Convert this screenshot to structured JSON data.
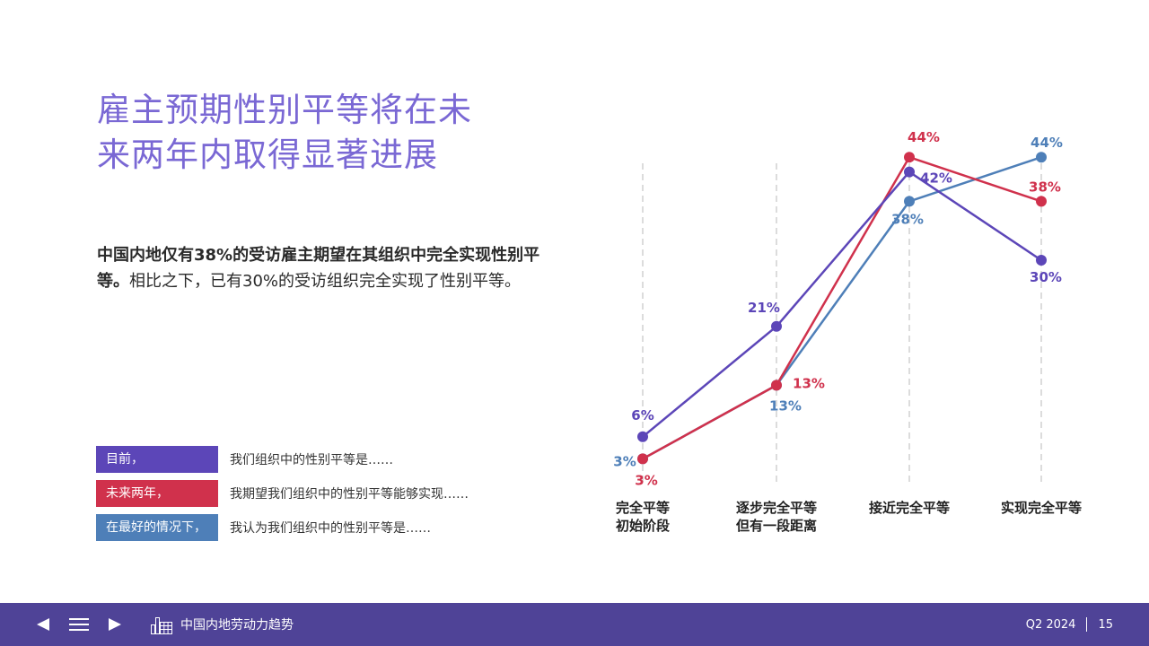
{
  "slide": {
    "title_line1": "雇主预期性别平等将在未",
    "title_line2": "来两年内取得显著进展",
    "body_bold": "中国内地仅有38%的受访雇主期望在其组织中完全实现性别平等。",
    "body_regular": "相比之下，已有30%的受访组织完全实现了性别平等。"
  },
  "legend": [
    {
      "tag": "目前，",
      "desc": "我们组织中的性别平等是……",
      "color": "#5c46b8"
    },
    {
      "tag": "未来两年，",
      "desc": "我期望我们组织中的性别平等能够实现……",
      "color": "#d0314c"
    },
    {
      "tag": "在最好的情况下，",
      "desc": "我认为我们组织中的性别平等是……",
      "color": "#4e7fb8"
    }
  ],
  "chart_data": {
    "type": "line",
    "categories": [
      [
        "完全平等",
        "初始阶段"
      ],
      [
        "逐步完全平等",
        "但有一段距离"
      ],
      [
        "接近完全平等"
      ],
      [
        "实现完全平等"
      ]
    ],
    "y_unit": "%",
    "ylim": [
      0,
      44
    ],
    "grid": "vertical dashed lines at each category",
    "legend_placement": "left",
    "series": [
      {
        "name": "目前，",
        "color": "#5c46b8",
        "values": [
          6,
          21,
          42,
          30
        ]
      },
      {
        "name": "未来两年，",
        "color": "#d0314c",
        "values": [
          3,
          13,
          44,
          38
        ]
      },
      {
        "name": "在最好的情况下，",
        "color": "#4e7fb8",
        "values": [
          3,
          13,
          38,
          44
        ]
      }
    ]
  },
  "footer": {
    "brand": "中国内地劳动力趋势",
    "period": "Q2 2024",
    "page_number": "15",
    "background": "#4f4397"
  },
  "icons": {
    "prev": "triangle-left-icon",
    "menu": "hamburger-menu-icon",
    "next": "triangle-right-icon",
    "brand": "city-building-icon"
  }
}
